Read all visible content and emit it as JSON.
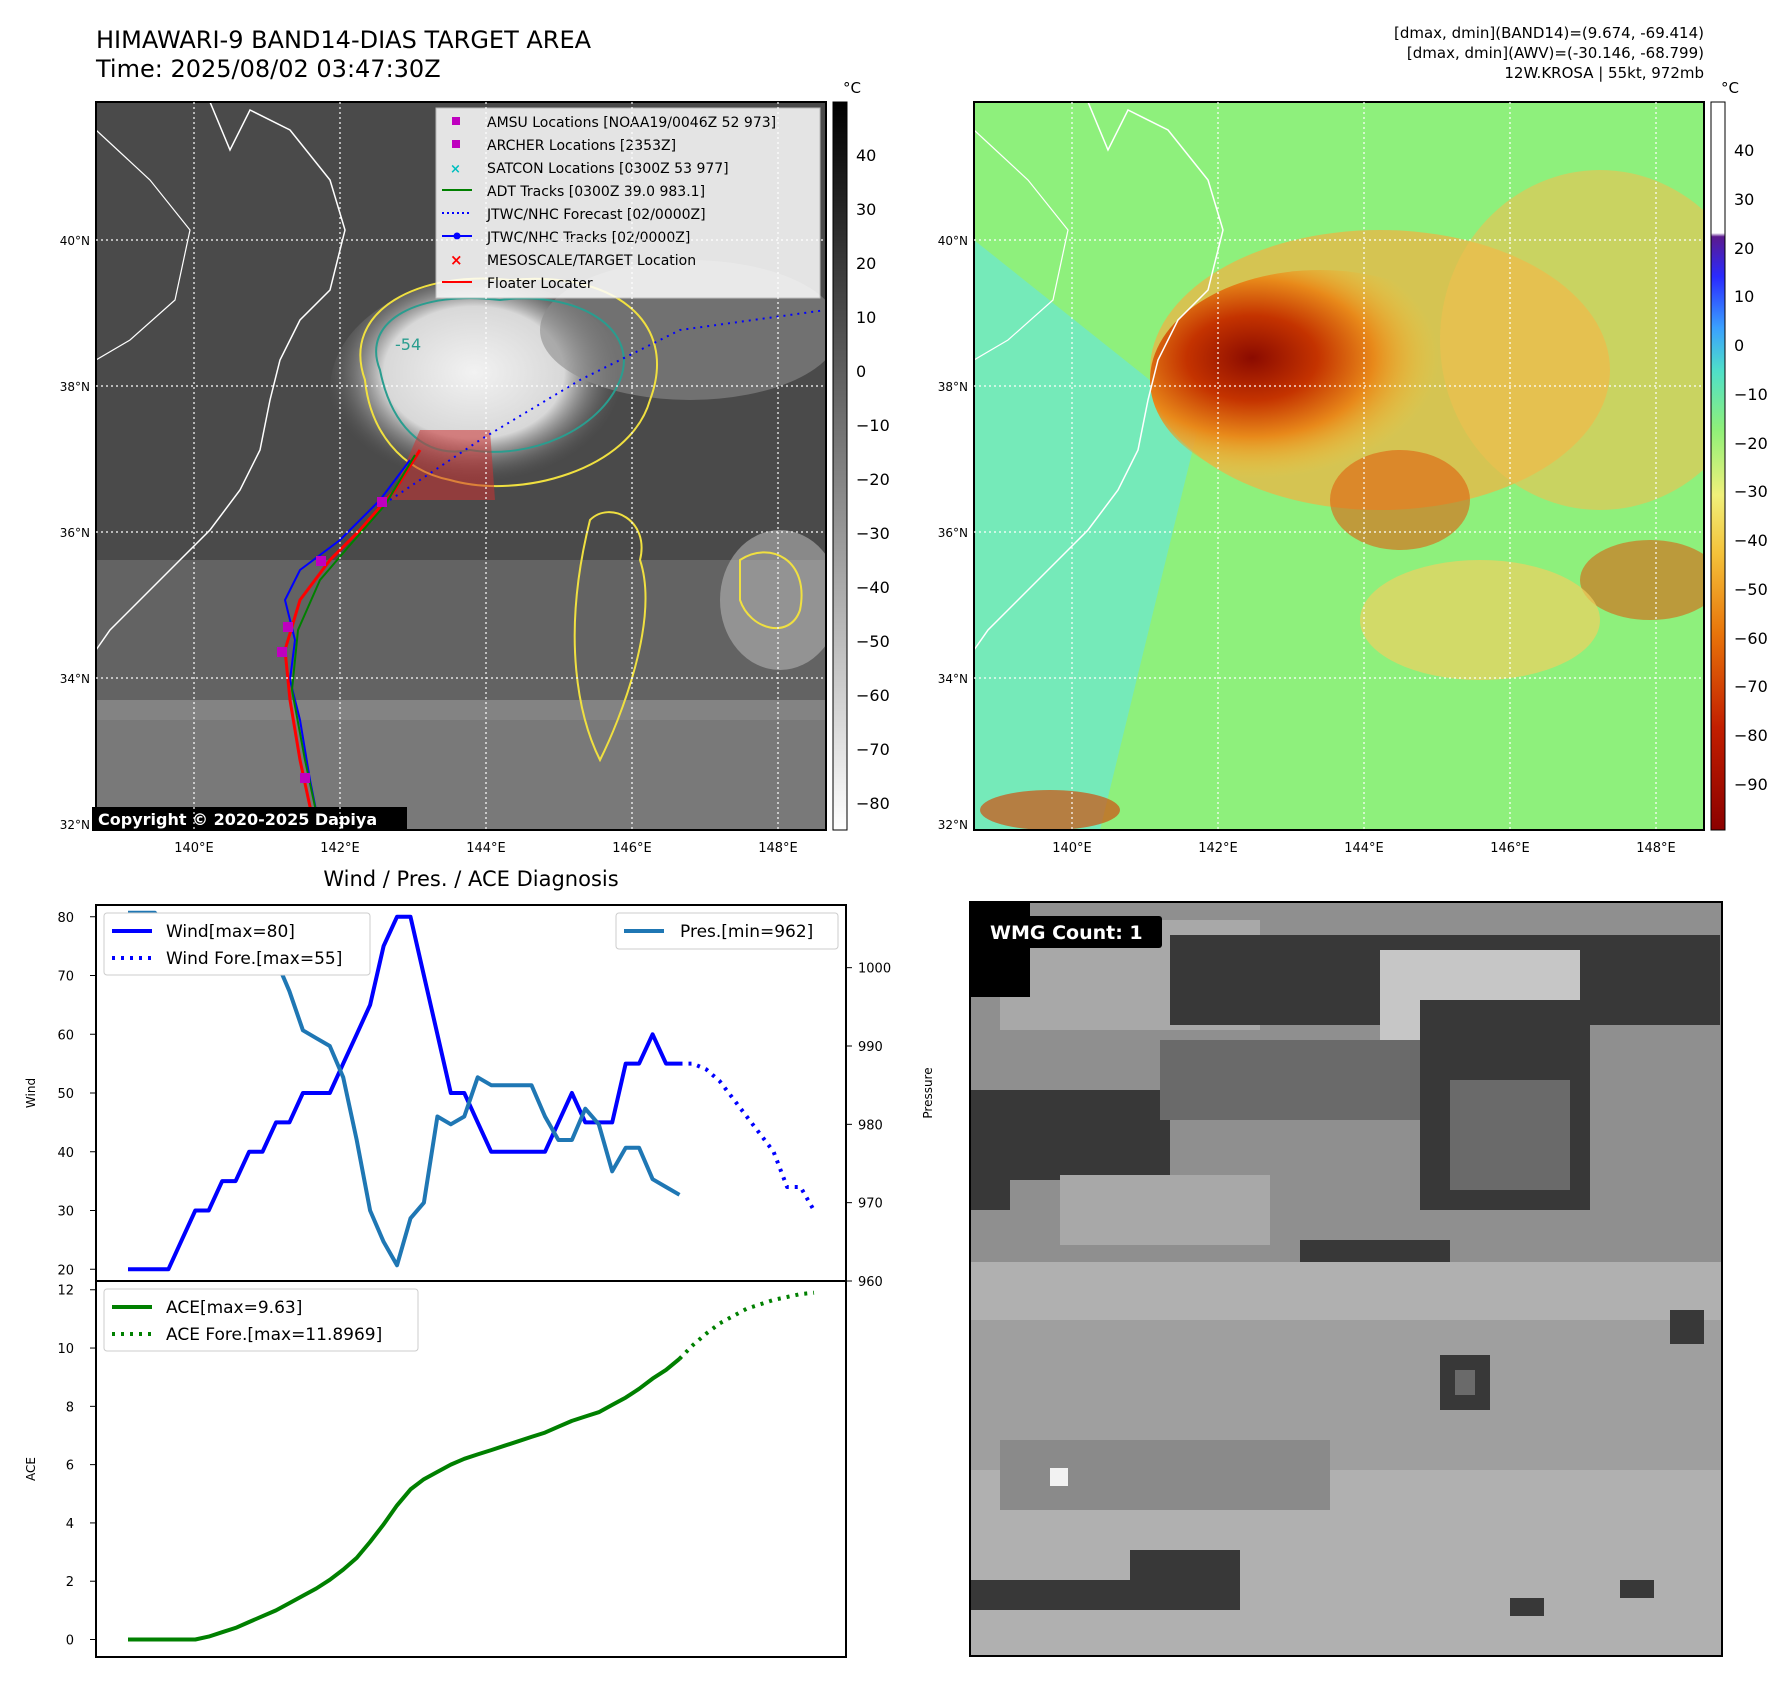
{
  "header": {
    "title": "HIMAWARI-9 BAND14-DIAS TARGET AREA",
    "time": "Time: 2025/08/02 03:47:30Z",
    "dmax_band14": "[dmax, dmin](BAND14)=(9.674, -69.414)",
    "dmax_awv": "[dmax, dmin](AWV)=(-30.146, -68.799)",
    "storm": "12W.KROSA | 55kt, 972mb"
  },
  "map_axes": {
    "lon_labels": [
      "140°E",
      "142°E",
      "144°E",
      "146°E",
      "148°E"
    ],
    "lat_labels": [
      "40°N",
      "38°N",
      "36°N",
      "34°N",
      "32°N"
    ]
  },
  "ir_colorbar": {
    "unit": "°C",
    "ticks": [
      "40",
      "30",
      "20",
      "10",
      "0",
      "−10",
      "−20",
      "−30",
      "−40",
      "−50",
      "−60",
      "−70",
      "−80"
    ]
  },
  "color_colorbar": {
    "unit": "°C",
    "ticks": [
      "40",
      "30",
      "20",
      "10",
      "0",
      "−10",
      "−20",
      "−30",
      "−40",
      "−50",
      "−60",
      "−70",
      "−80",
      "−90"
    ]
  },
  "contour_label": "-54",
  "legend": [
    {
      "label": "AMSU Locations [NOAA19/0046Z 52 973]",
      "color": "#bf00bf",
      "marker": "square"
    },
    {
      "label": "ARCHER Locations [2353Z]",
      "color": "#bf00bf",
      "marker": "square"
    },
    {
      "label": "SATCON Locations [0300Z 53 977]",
      "color": "#00bfbf",
      "marker": "x"
    },
    {
      "label": "ADT Tracks [0300Z 39.0 983.1]",
      "color": "#008000",
      "marker": "line"
    },
    {
      "label": "JTWC/NHC Forecast [02/0000Z]",
      "color": "#0000ff",
      "marker": "dotted"
    },
    {
      "label": "JTWC/NHC Tracks [02/0000Z]",
      "color": "#0000ff",
      "marker": "line-dot"
    },
    {
      "label": "MESOSCALE/TARGET Location",
      "color": "#ff0000",
      "marker": "x"
    },
    {
      "label": "Floater Locater",
      "color": "#ff0000",
      "marker": "line"
    }
  ],
  "copyright": "Copyright © 2020-2025 Dapiya",
  "wmg_label": "WMG Count: 1",
  "colors": {
    "wind": "#0000ff",
    "pressure": "#1f77b4",
    "ace": "#008000",
    "track_red": "#ff0000",
    "contour_yellow": "#f0e040",
    "contour_teal": "#2a9d8f"
  },
  "chart_data": [
    {
      "type": "line",
      "title": "Wind / Pres. / ACE Diagnosis",
      "ylabel": "Wind",
      "ylabel_right": "Pressure",
      "ylim": [
        18,
        82
      ],
      "ylim_right": [
        960,
        1008
      ],
      "yticks": [
        "80",
        "70",
        "60",
        "50",
        "40",
        "30",
        "20"
      ],
      "yticks_right": [
        "1000",
        "990",
        "980",
        "970",
        "960"
      ],
      "legend_left": [
        "Wind[max=80]",
        "Wind Fore.[max=55]"
      ],
      "legend_right": [
        "Pres.[min=962]"
      ],
      "series": [
        {
          "name": "Wind[max=80]",
          "axis": "left",
          "style": "solid",
          "x": [
            0,
            1,
            2,
            3,
            4,
            5,
            6,
            7,
            8,
            9,
            10,
            11,
            12,
            13,
            14,
            15,
            16,
            17,
            18,
            19,
            20,
            21,
            22,
            23,
            24,
            25,
            26,
            27,
            28,
            29,
            30,
            31,
            32,
            33,
            34,
            35,
            36,
            37,
            38,
            39,
            40,
            41
          ],
          "y": [
            20,
            20,
            20,
            20,
            25,
            30,
            30,
            35,
            35,
            40,
            40,
            45,
            45,
            50,
            50,
            50,
            55,
            60,
            65,
            75,
            80,
            80,
            70,
            60,
            50,
            50,
            45,
            40,
            40,
            40,
            40,
            40,
            45,
            50,
            45,
            45,
            45,
            55,
            55,
            60,
            55,
            55
          ]
        },
        {
          "name": "Wind Fore.[max=55]",
          "axis": "left",
          "style": "dotted",
          "x": [
            41,
            42,
            43,
            44,
            45,
            46,
            47,
            48,
            49,
            50,
            51
          ],
          "y": [
            55,
            55,
            54,
            52,
            49,
            46,
            43,
            40,
            34,
            34,
            30
          ]
        },
        {
          "name": "Pres.[min=962]",
          "axis": "right",
          "style": "solid",
          "x": [
            0,
            1,
            2,
            3,
            4,
            5,
            6,
            7,
            8,
            9,
            10,
            11,
            12,
            13,
            14,
            15,
            16,
            17,
            18,
            19,
            20,
            21,
            22,
            23,
            24,
            25,
            26,
            27,
            28,
            29,
            30,
            31,
            32,
            33,
            34,
            35,
            36,
            37,
            38,
            39,
            40,
            41
          ],
          "y": [
            1007,
            1007,
            1007,
            1005,
            1005,
            1004,
            1004,
            1002,
            1002,
            1001,
            1001,
            1001,
            997,
            992,
            991,
            990,
            986,
            978,
            969,
            965,
            962,
            968,
            970,
            981,
            980,
            981,
            986,
            985,
            985,
            985,
            985,
            981,
            978,
            978,
            982,
            980,
            974,
            977,
            977,
            973,
            972,
            971
          ]
        }
      ]
    },
    {
      "type": "line",
      "ylabel": "ACE",
      "ylim": [
        -0.6,
        12.3
      ],
      "yticks": [
        "12",
        "10",
        "8",
        "6",
        "4",
        "2",
        "0"
      ],
      "series": [
        {
          "name": "ACE[max=9.63]",
          "style": "solid",
          "x": [
            0,
            1,
            2,
            3,
            4,
            5,
            6,
            7,
            8,
            9,
            10,
            11,
            12,
            13,
            14,
            15,
            16,
            17,
            18,
            19,
            20,
            21,
            22,
            23,
            24,
            25,
            26,
            27,
            28,
            29,
            30,
            31,
            32,
            33,
            34,
            35,
            36,
            37,
            38,
            39,
            40,
            41
          ],
          "y": [
            0,
            0,
            0,
            0,
            0,
            0,
            0.1,
            0.25,
            0.4,
            0.6,
            0.8,
            1.0,
            1.25,
            1.5,
            1.75,
            2.05,
            2.4,
            2.8,
            3.35,
            3.95,
            4.6,
            5.15,
            5.5,
            5.75,
            6.0,
            6.2,
            6.35,
            6.5,
            6.65,
            6.8,
            6.95,
            7.1,
            7.3,
            7.5,
            7.65,
            7.8,
            8.05,
            8.3,
            8.6,
            8.95,
            9.25,
            9.63
          ]
        },
        {
          "name": "ACE Fore.[max=11.8969]",
          "style": "dotted",
          "x": [
            41,
            42,
            43,
            44,
            45,
            46,
            47,
            48,
            49,
            50,
            51
          ],
          "y": [
            9.63,
            10.1,
            10.5,
            10.85,
            11.1,
            11.35,
            11.5,
            11.65,
            11.75,
            11.85,
            11.8969
          ]
        }
      ]
    }
  ]
}
